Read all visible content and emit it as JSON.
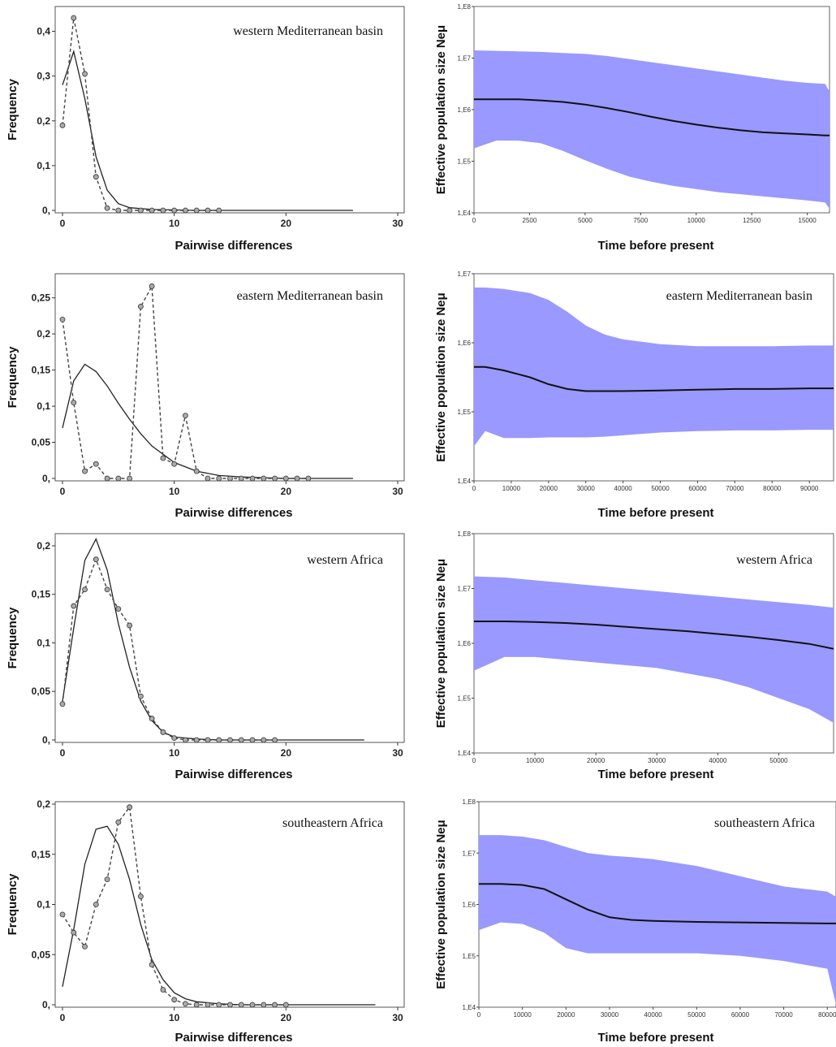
{
  "chart_data": [
    {
      "type": "line",
      "panel": "mismatch",
      "title": "western Mediterranean basin",
      "xlabel": "Pairwise differences",
      "ylabel": "Frequency",
      "xlim": [
        0,
        30
      ],
      "ylim": [
        0,
        0.45
      ],
      "xticks": [
        "0",
        "10",
        "20",
        "30"
      ],
      "yticks": [
        {
          "v": 0,
          "l": "0,"
        },
        {
          "v": 0.1,
          "l": "0,1"
        },
        {
          "v": 0.2,
          "l": "0,2"
        },
        {
          "v": 0.3,
          "l": "0,3"
        },
        {
          "v": 0.4,
          "l": "0,4"
        }
      ],
      "series": [
        {
          "style": "solid",
          "x": [
            0,
            1,
            2,
            3,
            4,
            5,
            6,
            8,
            10,
            12,
            14,
            16,
            18,
            20,
            22,
            24,
            26
          ],
          "y": [
            0.28,
            0.355,
            0.25,
            0.12,
            0.045,
            0.015,
            0.006,
            0.002,
            0.001,
            0,
            0,
            0,
            0,
            0,
            0,
            0,
            0
          ]
        },
        {
          "style": "dashed",
          "markers": true,
          "x": [
            0,
            1,
            2,
            3,
            4,
            5,
            6,
            7,
            8,
            9,
            10,
            11,
            12,
            13,
            14
          ],
          "y": [
            0.19,
            0.43,
            0.305,
            0.075,
            0.005,
            0,
            0,
            0,
            0,
            0,
            0,
            0,
            0,
            0,
            0
          ]
        }
      ]
    },
    {
      "type": "area",
      "panel": "bsp",
      "title": "",
      "xlabel": "Time before present",
      "ylabel": "Effective population size Neμ",
      "log": true,
      "xlim": [
        0,
        16000
      ],
      "ylim": [
        4,
        8
      ],
      "xticks": [
        "0",
        "2500",
        "5000",
        "7500",
        "10000",
        "12500",
        "15000"
      ],
      "xtick_values": [
        0,
        2500,
        5000,
        7500,
        10000,
        12500,
        15000
      ],
      "yticks": [
        {
          "v": 4,
          "l": "1,E4"
        },
        {
          "v": 5,
          "l": "1,E5"
        },
        {
          "v": 6,
          "l": "1,E6"
        },
        {
          "v": 7,
          "l": "1,E7"
        },
        {
          "v": 8,
          "l": "1,E8"
        }
      ],
      "band_color": "#9999ff",
      "t": [
        0,
        1000,
        2000,
        3000,
        4000,
        5000,
        6000,
        7000,
        8000,
        9000,
        10000,
        11000,
        12000,
        13000,
        14000,
        15000,
        15800,
        16000
      ],
      "upper": [
        7.15,
        7.14,
        7.13,
        7.12,
        7.1,
        7.08,
        7.04,
        6.98,
        6.92,
        6.86,
        6.8,
        6.74,
        6.68,
        6.62,
        6.56,
        6.52,
        6.5,
        6.35
      ],
      "median": [
        6.2,
        6.2,
        6.2,
        6.18,
        6.15,
        6.1,
        6.03,
        5.95,
        5.86,
        5.78,
        5.71,
        5.65,
        5.6,
        5.56,
        5.54,
        5.52,
        5.5,
        5.5
      ],
      "lower": [
        5.25,
        5.4,
        5.4,
        5.35,
        5.2,
        5.02,
        4.85,
        4.7,
        4.6,
        4.52,
        4.46,
        4.4,
        4.36,
        4.32,
        4.28,
        4.24,
        4.2,
        4.08
      ]
    },
    {
      "type": "line",
      "panel": "mismatch",
      "title": "eastern Mediterranean basin",
      "xlabel": "Pairwise differences",
      "ylabel": "Frequency",
      "xlim": [
        0,
        30
      ],
      "ylim": [
        0,
        0.28
      ],
      "xticks": [
        "0",
        "10",
        "20",
        "30"
      ],
      "yticks": [
        {
          "v": 0,
          "l": "0,"
        },
        {
          "v": 0.05,
          "l": "0,05"
        },
        {
          "v": 0.1,
          "l": "0,1"
        },
        {
          "v": 0.15,
          "l": "0,15"
        },
        {
          "v": 0.2,
          "l": "0,2"
        },
        {
          "v": 0.25,
          "l": "0,25"
        }
      ],
      "series": [
        {
          "style": "solid",
          "x": [
            0,
            1,
            2,
            3,
            4,
            5,
            6,
            7,
            8,
            10,
            12,
            14,
            16,
            18,
            20,
            22,
            24,
            26
          ],
          "y": [
            0.07,
            0.135,
            0.158,
            0.148,
            0.128,
            0.104,
            0.082,
            0.062,
            0.045,
            0.022,
            0.01,
            0.004,
            0.002,
            0.001,
            0,
            0,
            0,
            0
          ]
        },
        {
          "style": "dashed",
          "markers": true,
          "x": [
            0,
            1,
            2,
            3,
            4,
            5,
            6,
            7,
            8,
            9,
            10,
            11,
            12,
            13,
            14,
            15,
            16,
            17,
            18,
            19,
            20,
            21,
            22
          ],
          "y": [
            0.22,
            0.105,
            0.01,
            0.02,
            0,
            0,
            0,
            0.238,
            0.266,
            0.028,
            0.02,
            0.087,
            0.01,
            0,
            0,
            0,
            0,
            0,
            0,
            0,
            0,
            0,
            0
          ]
        }
      ]
    },
    {
      "type": "area",
      "panel": "bsp",
      "title": "eastern Mediterranean basin",
      "xlabel": "Time before present",
      "ylabel": "Effective population size Neμ",
      "log": true,
      "xlim": [
        0,
        96500
      ],
      "ylim": [
        4,
        7
      ],
      "xticks": [
        "0",
        "10000",
        "20000",
        "30000",
        "40000",
        "50000",
        "60000",
        "70000",
        "80000",
        "90000"
      ],
      "xtick_values": [
        0,
        10000,
        20000,
        30000,
        40000,
        50000,
        60000,
        70000,
        80000,
        90000
      ],
      "yticks": [
        {
          "v": 4,
          "l": "1,E4"
        },
        {
          "v": 5,
          "l": "1,E5"
        },
        {
          "v": 6,
          "l": "1,E6"
        },
        {
          "v": 7,
          "l": "1,E7"
        }
      ],
      "band_color": "#9999ff",
      "t": [
        0,
        3000,
        8000,
        15000,
        20000,
        25000,
        30000,
        35000,
        40000,
        50000,
        60000,
        70000,
        80000,
        90000,
        96500
      ],
      "upper": [
        6.8,
        6.8,
        6.78,
        6.72,
        6.62,
        6.45,
        6.25,
        6.12,
        6.05,
        5.98,
        5.95,
        5.95,
        5.95,
        5.96,
        5.96
      ],
      "median": [
        5.65,
        5.65,
        5.6,
        5.5,
        5.4,
        5.33,
        5.3,
        5.3,
        5.3,
        5.31,
        5.32,
        5.33,
        5.33,
        5.34,
        5.34
      ],
      "lower": [
        4.5,
        4.72,
        4.62,
        4.62,
        4.63,
        4.63,
        4.63,
        4.64,
        4.66,
        4.7,
        4.72,
        4.73,
        4.73,
        4.74,
        4.74
      ]
    },
    {
      "type": "line",
      "panel": "mismatch",
      "title": "western Africa",
      "xlabel": "Pairwise differences",
      "ylabel": "Frequency",
      "xlim": [
        0,
        30
      ],
      "ylim": [
        0,
        0.21
      ],
      "xticks": [
        "0",
        "10",
        "20",
        "30"
      ],
      "yticks": [
        {
          "v": 0,
          "l": "0,"
        },
        {
          "v": 0.05,
          "l": "0,05"
        },
        {
          "v": 0.1,
          "l": "0,1"
        },
        {
          "v": 0.15,
          "l": "0,15"
        },
        {
          "v": 0.2,
          "l": "0,2"
        }
      ],
      "series": [
        {
          "style": "solid",
          "x": [
            0,
            1,
            2,
            3,
            4,
            5,
            6,
            7,
            8,
            9,
            10,
            12,
            14,
            16,
            18,
            20,
            22,
            24,
            26,
            27
          ],
          "y": [
            0.04,
            0.115,
            0.185,
            0.207,
            0.175,
            0.12,
            0.075,
            0.04,
            0.02,
            0.008,
            0.003,
            0.001,
            0,
            0,
            0,
            0,
            0,
            0,
            0,
            0
          ]
        },
        {
          "style": "dashed",
          "markers": true,
          "x": [
            0,
            1,
            2,
            3,
            4,
            5,
            6,
            7,
            8,
            9,
            10,
            11,
            12,
            13,
            14,
            15,
            16,
            17,
            18,
            19
          ],
          "y": [
            0.037,
            0.138,
            0.155,
            0.186,
            0.155,
            0.135,
            0.118,
            0.045,
            0.022,
            0.008,
            0.002,
            0,
            0,
            0,
            0,
            0,
            0,
            0,
            0,
            0
          ]
        }
      ]
    },
    {
      "type": "area",
      "panel": "bsp",
      "title": "western Africa",
      "xlabel": "Time before present",
      "ylabel": "Effective population size Neμ",
      "log": true,
      "xlim": [
        0,
        59000
      ],
      "ylim": [
        4,
        8
      ],
      "xticks": [
        "0",
        "10000",
        "20000",
        "30000",
        "40000",
        "50000"
      ],
      "xtick_values": [
        0,
        10000,
        20000,
        30000,
        40000,
        50000
      ],
      "yticks": [
        {
          "v": 4,
          "l": "1,E4"
        },
        {
          "v": 5,
          "l": "1,E5"
        },
        {
          "v": 6,
          "l": "1,E6"
        },
        {
          "v": 7,
          "l": "1,E7"
        },
        {
          "v": 8,
          "l": "1,E8"
        }
      ],
      "band_color": "#9999ff",
      "t": [
        0,
        5000,
        10000,
        15000,
        20000,
        25000,
        30000,
        35000,
        40000,
        45000,
        50000,
        55000,
        59000
      ],
      "upper": [
        7.22,
        7.2,
        7.15,
        7.1,
        7.05,
        7.0,
        6.95,
        6.9,
        6.85,
        6.8,
        6.75,
        6.7,
        6.65
      ],
      "median": [
        6.4,
        6.4,
        6.39,
        6.37,
        6.34,
        6.3,
        6.26,
        6.22,
        6.17,
        6.12,
        6.06,
        5.99,
        5.9
      ],
      "lower": [
        5.5,
        5.75,
        5.75,
        5.7,
        5.65,
        5.6,
        5.55,
        5.45,
        5.35,
        5.2,
        5.0,
        4.8,
        4.55
      ]
    },
    {
      "type": "line",
      "panel": "mismatch",
      "title": "southeastern Africa",
      "xlabel": "Pairwise differences",
      "ylabel": "Frequency",
      "xlim": [
        0,
        30
      ],
      "ylim": [
        0,
        0.2
      ],
      "xticks": [
        "0",
        "10",
        "20",
        "30"
      ],
      "yticks": [
        {
          "v": 0,
          "l": "0,"
        },
        {
          "v": 0.05,
          "l": "0,05"
        },
        {
          "v": 0.1,
          "l": "0,1"
        },
        {
          "v": 0.15,
          "l": "0,15"
        },
        {
          "v": 0.2,
          "l": "0,2"
        }
      ],
      "series": [
        {
          "style": "solid",
          "x": [
            0,
            1,
            2,
            3,
            4,
            5,
            6,
            7,
            8,
            9,
            10,
            11,
            12,
            14,
            16,
            18,
            20,
            22,
            24,
            26,
            28
          ],
          "y": [
            0.018,
            0.075,
            0.14,
            0.175,
            0.178,
            0.16,
            0.125,
            0.08,
            0.045,
            0.025,
            0.012,
            0.006,
            0.003,
            0.001,
            0,
            0,
            0,
            0,
            0,
            0,
            0
          ]
        },
        {
          "style": "dashed",
          "markers": true,
          "x": [
            0,
            1,
            2,
            3,
            4,
            5,
            6,
            7,
            8,
            9,
            10,
            11,
            12,
            13,
            14,
            15,
            16,
            17,
            18,
            19,
            20
          ],
          "y": [
            0.09,
            0.072,
            0.058,
            0.1,
            0.125,
            0.182,
            0.197,
            0.108,
            0.04,
            0.015,
            0.005,
            0.001,
            0,
            0,
            0,
            0,
            0,
            0,
            0,
            0,
            0
          ]
        }
      ]
    },
    {
      "type": "area",
      "panel": "bsp",
      "title": "southeastern Africa",
      "xlabel": "Time before present",
      "ylabel": "Effective population size Neμ",
      "log": true,
      "xlim": [
        0,
        82000
      ],
      "ylim": [
        4,
        8
      ],
      "xticks": [
        "0",
        "10000",
        "20000",
        "30000",
        "40000",
        "50000",
        "60000",
        "70000",
        "80000"
      ],
      "xtick_values": [
        0,
        10000,
        20000,
        30000,
        40000,
        50000,
        60000,
        70000,
        80000
      ],
      "yticks": [
        {
          "v": 4,
          "l": "1,E4"
        },
        {
          "v": 5,
          "l": "1,E5"
        },
        {
          "v": 6,
          "l": "1,E6"
        },
        {
          "v": 7,
          "l": "1,E7"
        },
        {
          "v": 8,
          "l": "1,E8"
        }
      ],
      "band_color": "#9999ff",
      "t": [
        0,
        5000,
        10000,
        15000,
        20000,
        25000,
        30000,
        35000,
        40000,
        50000,
        60000,
        70000,
        80000,
        82000
      ],
      "upper": [
        7.35,
        7.35,
        7.32,
        7.25,
        7.12,
        7.0,
        6.95,
        6.92,
        6.88,
        6.75,
        6.55,
        6.35,
        6.25,
        6.15
      ],
      "median": [
        6.4,
        6.4,
        6.38,
        6.3,
        6.1,
        5.9,
        5.75,
        5.7,
        5.68,
        5.66,
        5.65,
        5.64,
        5.63,
        5.63
      ],
      "lower": [
        5.5,
        5.65,
        5.62,
        5.45,
        5.15,
        5.05,
        5.05,
        5.05,
        5.05,
        5.05,
        5.0,
        4.9,
        4.75,
        4.05
      ]
    }
  ]
}
